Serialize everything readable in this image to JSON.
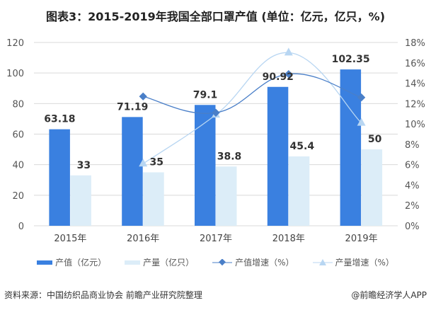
{
  "chart_data": {
    "type": "bar",
    "title": "图表3：2015-2019年我国全部口罩产值 (单位：亿元，亿只，%)",
    "categories": [
      "2015年",
      "2016年",
      "2017年",
      "2018年",
      "2019年"
    ],
    "ylim": [
      0,
      120
    ],
    "y_ticks": [
      "0",
      "20",
      "40",
      "60",
      "80",
      "100",
      "120"
    ],
    "y2lim": [
      0,
      18
    ],
    "y2_ticks": [
      "0%",
      "2%",
      "4%",
      "6%",
      "8%",
      "10%",
      "12%",
      "14%",
      "16%",
      "18%"
    ],
    "grid": true,
    "legend_position": "bottom",
    "series": [
      {
        "name": "产值（亿元）",
        "type": "bar",
        "axis": "left",
        "color": "#3a80e0",
        "values": [
          63.18,
          71.19,
          79.1,
          90.92,
          102.35
        ],
        "labels": [
          "63.18",
          "71.19",
          "79.1",
          "90.92",
          "102.35"
        ]
      },
      {
        "name": "产量（亿只）",
        "type": "bar",
        "axis": "left",
        "color": "#dcedf8",
        "values": [
          33,
          35,
          38.8,
          45.4,
          50
        ],
        "labels": [
          "33",
          "35",
          "38.8",
          "45.4",
          "50"
        ]
      },
      {
        "name": "产值增速（%）",
        "type": "line",
        "axis": "right",
        "color": "#4a7fc8",
        "marker": "diamond",
        "values": [
          null,
          12.7,
          11.1,
          14.9,
          12.6
        ]
      },
      {
        "name": "产量增速（%）",
        "type": "line",
        "axis": "right",
        "color": "#b8d6f2",
        "marker": "triangle",
        "values": [
          null,
          6.1,
          10.9,
          17.0,
          10.1
        ]
      }
    ]
  },
  "footer": {
    "source": "资料来源：中国纺织品商业协会 前瞻产业研究院整理",
    "credit": "@前瞻经济学人APP"
  }
}
